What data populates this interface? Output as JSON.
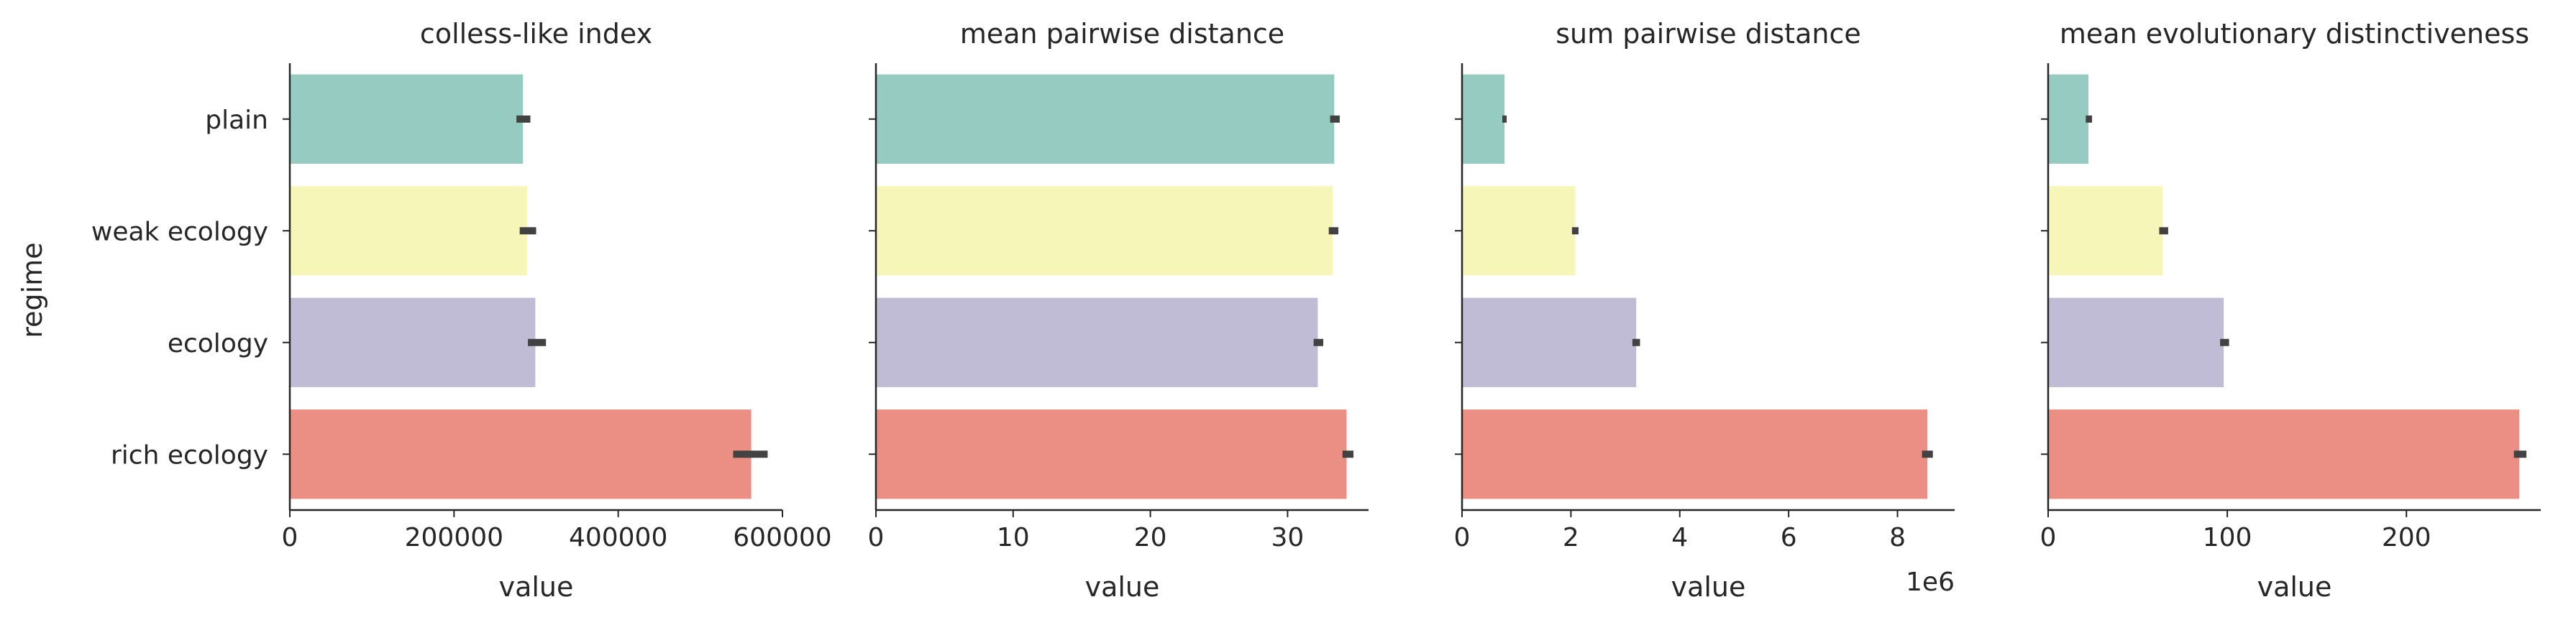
{
  "figure": {
    "ylabel": "regime"
  },
  "chart_data": [
    {
      "type": "bar",
      "orientation": "horizontal",
      "title": "colless-like index",
      "xlabel": "value",
      "ylabel": "regime",
      "categories": [
        "plain",
        "weak ecology",
        "ecology",
        "rich ecology"
      ],
      "values": [
        284000,
        289000,
        299000,
        562000
      ],
      "error_low": [
        276000,
        280000,
        290000,
        540000
      ],
      "error_high": [
        293000,
        300000,
        312000,
        582000
      ],
      "xlim": [
        0,
        600000
      ],
      "xticks": [
        0,
        200000,
        400000,
        600000
      ],
      "xtick_labels": [
        "0",
        "200000",
        "400000",
        "600000"
      ],
      "offset_text": "",
      "colors": [
        "#95cbc0",
        "#f6f6b9",
        "#c0bcd6",
        "#eb8f84"
      ]
    },
    {
      "type": "bar",
      "orientation": "horizontal",
      "title": "mean pairwise distance",
      "xlabel": "value",
      "categories": [
        "plain",
        "weak ecology",
        "ecology",
        "rich ecology"
      ],
      "values": [
        33.4,
        33.3,
        32.2,
        34.3
      ],
      "error_low": [
        33.1,
        33.0,
        31.9,
        34.0
      ],
      "error_high": [
        33.8,
        33.7,
        32.6,
        34.8
      ],
      "xlim": [
        0,
        35.9
      ],
      "xticks": [
        0,
        10,
        20,
        30
      ],
      "xtick_labels": [
        "0",
        "10",
        "20",
        "30"
      ],
      "offset_text": "",
      "colors": [
        "#95cbc0",
        "#f6f6b9",
        "#c0bcd6",
        "#eb8f84"
      ]
    },
    {
      "type": "bar",
      "orientation": "horizontal",
      "title": "sum pairwise distance",
      "xlabel": "value",
      "categories": [
        "plain",
        "weak ecology",
        "ecology",
        "rich ecology"
      ],
      "values": [
        780000,
        2080000,
        3200000,
        8550000
      ],
      "error_low": [
        740000,
        2020000,
        3130000,
        8450000
      ],
      "error_high": [
        820000,
        2140000,
        3270000,
        8650000
      ],
      "xlim": [
        0,
        9050000
      ],
      "xticks": [
        0,
        2000000,
        4000000,
        6000000,
        8000000
      ],
      "xtick_labels": [
        "0",
        "2",
        "4",
        "6",
        "8"
      ],
      "offset_text": "1e6",
      "colors": [
        "#95cbc0",
        "#f6f6b9",
        "#c0bcd6",
        "#eb8f84"
      ]
    },
    {
      "type": "bar",
      "orientation": "horizontal",
      "title": "mean evolutionary distinctiveness",
      "xlabel": "value",
      "categories": [
        "plain",
        "weak ecology",
        "ecology",
        "rich ecology"
      ],
      "values": [
        22.5,
        64.0,
        98.0,
        263.0
      ],
      "error_low": [
        21.0,
        62.0,
        96.0,
        260.0
      ],
      "error_high": [
        24.5,
        67.0,
        101.0,
        267.0
      ],
      "xlim": [
        0,
        275
      ],
      "xticks": [
        0,
        100,
        200
      ],
      "xtick_labels": [
        "0",
        "100",
        "200"
      ],
      "offset_text": "",
      "colors": [
        "#95cbc0",
        "#f6f6b9",
        "#c0bcd6",
        "#eb8f84"
      ]
    }
  ]
}
